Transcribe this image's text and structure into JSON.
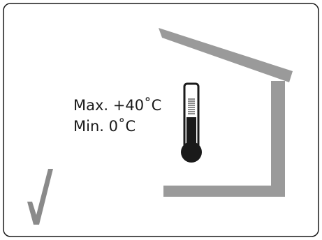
{
  "temperature_range": {
    "max_label": "Max. +40˚C",
    "min_label": "Min.  0˚C"
  },
  "icons": {
    "thermometer": "thermometer-icon",
    "shelter": "shelter-roof-icon",
    "approved": "checkmark-icon"
  },
  "colors": {
    "border": "#1a1a1a",
    "shelter": "#9a9a9a",
    "checkmark": "#8a8a8a",
    "thermometer": "#1a1a1a",
    "text": "#1a1a1a"
  }
}
